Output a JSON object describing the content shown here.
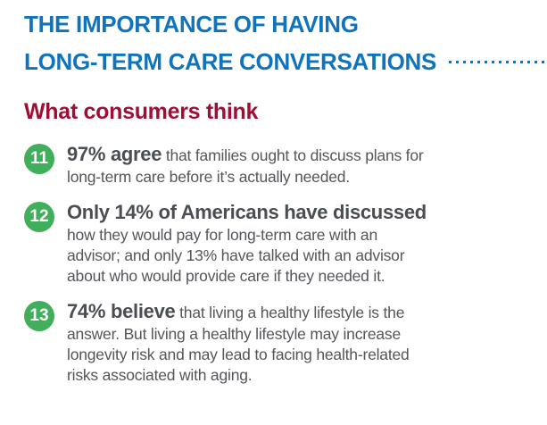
{
  "header": {
    "title_line1": "THE IMPORTANCE OF HAVING",
    "title_line2": "LONG-TERM CARE CONVERSATIONS"
  },
  "subheader": "What consumers think",
  "items": [
    {
      "number": "11",
      "lead": "97% agree",
      "rest": [
        "that families ought to discuss plans for",
        "long-term care before it’s actually needed."
      ]
    },
    {
      "number": "12",
      "lead": "Only 14% of Americans have discussed",
      "rest": [
        "",
        "how they would pay for long-term care with an",
        "advisor; and only 13% have talked with an advisor",
        "about who would provide care if they needed it."
      ]
    },
    {
      "number": "13",
      "lead": "74% believe",
      "rest": [
        "that living a healthy lifestyle is the",
        "answer. But living a healthy lifestyle may increase",
        "longevity risk and may lead to facing health-related",
        "risks associated with aging."
      ]
    }
  ],
  "colors": {
    "heading_blue": "#0F74BC",
    "subheading_red": "#A00D35",
    "badge_green": "#41AE5B",
    "body_gray": "#54565A"
  }
}
